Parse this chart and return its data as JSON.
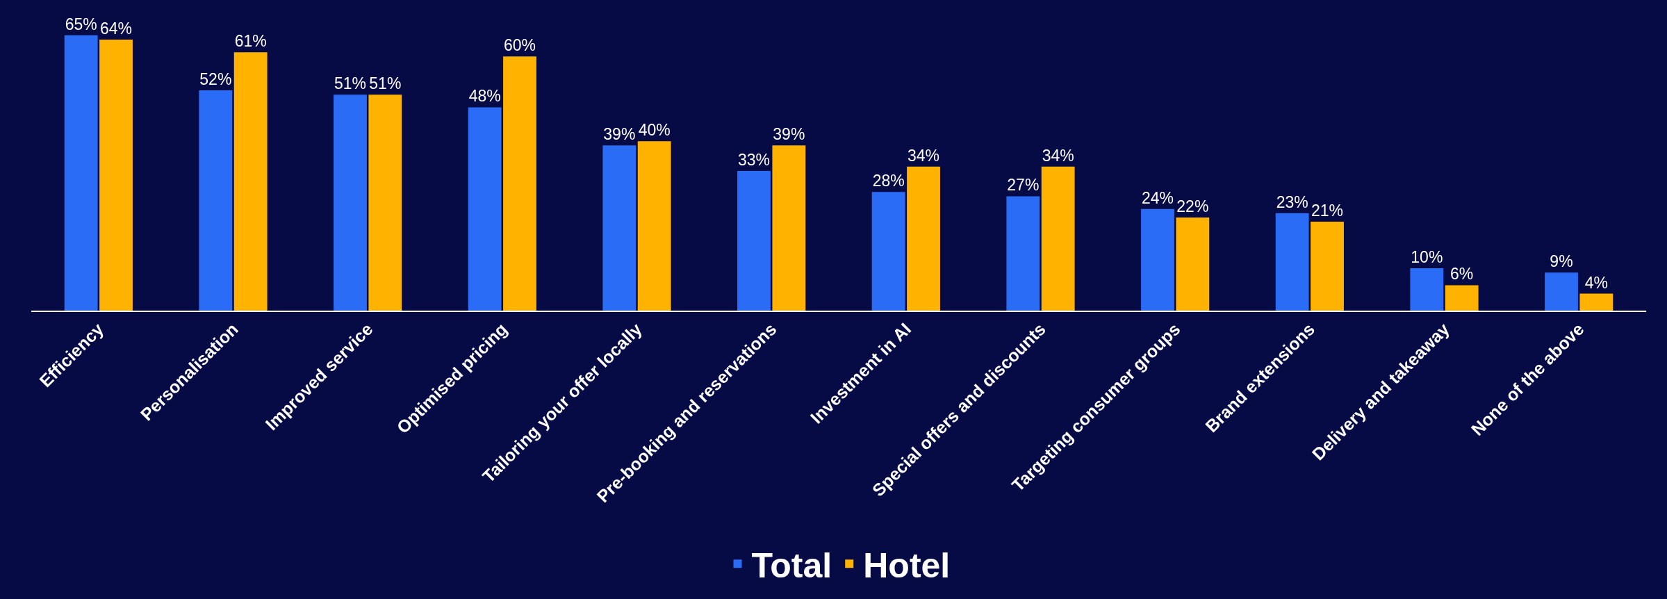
{
  "chart_data": {
    "type": "bar",
    "categories": [
      "Efficiency",
      "Personalisation",
      "Improved service",
      "Optimised pricing",
      "Tailoring your offer locally",
      "Pre-booking and reservations",
      "Investment in AI",
      "Special offers and discounts",
      "Targeting consumer groups",
      "Brand extensions",
      "Delivery and takeaway",
      "None of the above"
    ],
    "series": [
      {
        "name": "Total",
        "color": "#2b6cf6",
        "values": [
          65,
          52,
          51,
          48,
          39,
          33,
          28,
          27,
          24,
          23,
          10,
          9
        ],
        "value_labels": [
          "65%",
          "52%",
          "51%",
          "48%",
          "39%",
          "33%",
          "28%",
          "27%",
          "24%",
          "23%",
          "10%",
          "9%"
        ]
      },
      {
        "name": "Hotel",
        "color": "#ffb300",
        "values": [
          64,
          61,
          51,
          60,
          40,
          39,
          34,
          34,
          22,
          21,
          6,
          4
        ],
        "value_labels": [
          "64%",
          "61%",
          "51%",
          "60%",
          "40%",
          "39%",
          "34%",
          "34%",
          "22%",
          "21%",
          "6%",
          "4%"
        ]
      }
    ],
    "legend": "bottom",
    "grid": false
  }
}
